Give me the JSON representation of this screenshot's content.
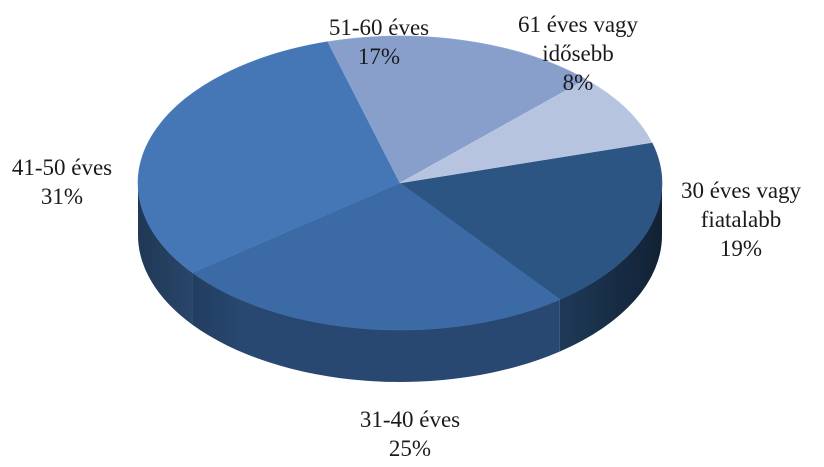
{
  "chart_data": {
    "type": "pie",
    "style": "3d",
    "slices": [
      {
        "label_lines": [
          "30 éves vagy",
          "fiatalabb"
        ],
        "value": 19,
        "value_label": "19%",
        "color": "#2d5583"
      },
      {
        "label_lines": [
          "31-40 éves"
        ],
        "value": 25,
        "value_label": "25%",
        "color": "#3b6aa5"
      },
      {
        "label_lines": [
          "41-50 éves"
        ],
        "value": 31,
        "value_label": "31%",
        "color": "#4577b7"
      },
      {
        "label_lines": [
          "51-60 éves"
        ],
        "value": 17,
        "value_label": "17%",
        "color": "#899fcb"
      },
      {
        "label_lines": [
          "61 éves vagy",
          "idősebb"
        ],
        "value": 8,
        "value_label": "8%",
        "color": "#b7c4df"
      }
    ],
    "legend": "none",
    "data_labels": "outside"
  }
}
